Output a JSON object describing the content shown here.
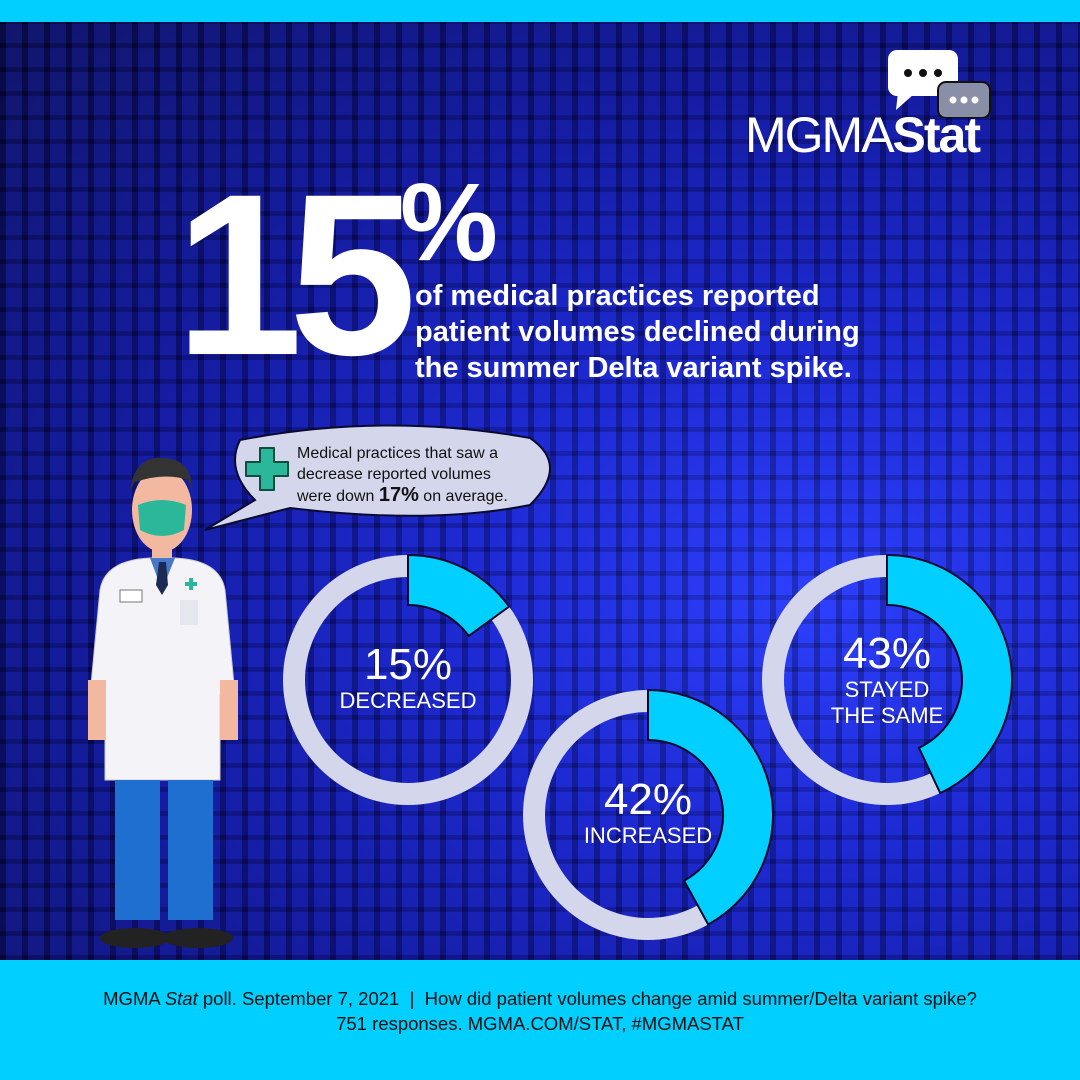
{
  "logo": {
    "text_light": "MGMA",
    "text_bold": "Stat",
    "icon": "chat-bubbles-icon"
  },
  "headline": {
    "big_number": "15",
    "percent_sign": "%",
    "lines": [
      "of medical practices reported",
      "patient volumes declined during",
      "the summer Delta variant spike."
    ]
  },
  "callout": {
    "icon": "medical-cross-icon",
    "line1": "Medical practices that saw a",
    "line2": "decrease reported volumes",
    "line3_pre": "were down ",
    "line3_bold": "17%",
    "line3_post": " on average."
  },
  "chart_data": {
    "type": "donut",
    "title": "",
    "series": [
      {
        "label": "DECREASED",
        "value": 15,
        "display": "15%",
        "label_lines": [
          "DECREASED"
        ]
      },
      {
        "label": "INCREASED",
        "value": 42,
        "display": "42%",
        "label_lines": [
          "INCREASED"
        ]
      },
      {
        "label": "STAYED THE SAME",
        "value": 43,
        "display": "43%",
        "label_lines": [
          "STAYED",
          "THE SAME"
        ]
      }
    ],
    "colors": {
      "highlight": "#00cfff",
      "track": "#d4d6ec",
      "outline": "#0a0a30"
    }
  },
  "footer": {
    "line1_pre": "MGMA ",
    "line1_italic": "Stat",
    "line1_post": " poll. September 7, 2021  |  How did patient volumes change amid summer/Delta variant spike?",
    "line2": "751 responses. MGMA.COM/STAT, #MGMASTAT"
  },
  "colors": {
    "accent": "#00cfff",
    "background": "#1620c8",
    "mask": "#2bb89a"
  }
}
